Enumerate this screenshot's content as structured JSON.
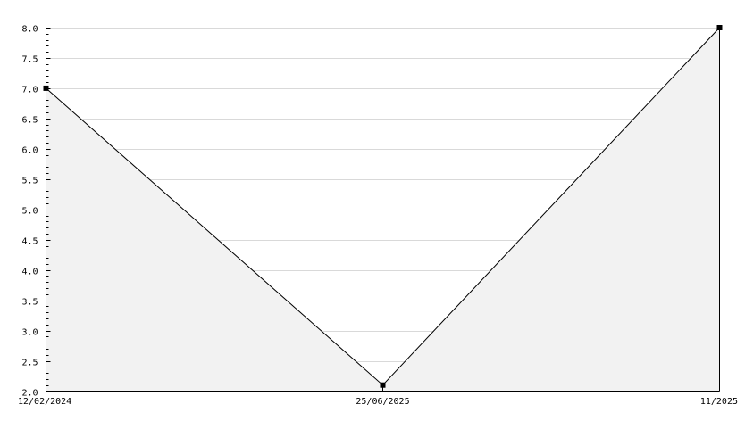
{
  "chart_data": {
    "type": "area",
    "title": "",
    "xlabel": "",
    "ylabel": "",
    "categories": [
      "12/02/2024",
      "25/06/2025",
      "11/2025"
    ],
    "values": [
      7.0,
      2.1,
      8.0
    ],
    "ylim": [
      2.0,
      8.0
    ],
    "y_major_step": 0.5,
    "y_minor_step": 0.1,
    "y_tick_labels": [
      "2.0",
      "2.5",
      "3.0",
      "3.5",
      "4.0",
      "4.5",
      "5.0",
      "5.5",
      "6.0",
      "6.5",
      "7.0",
      "7.5",
      "8.0"
    ],
    "grid": true,
    "legend": "none",
    "colors": {
      "line": "#000000",
      "fill": "#f2f2f2",
      "grid": "#d9d9d9",
      "marker": "#000000"
    }
  }
}
